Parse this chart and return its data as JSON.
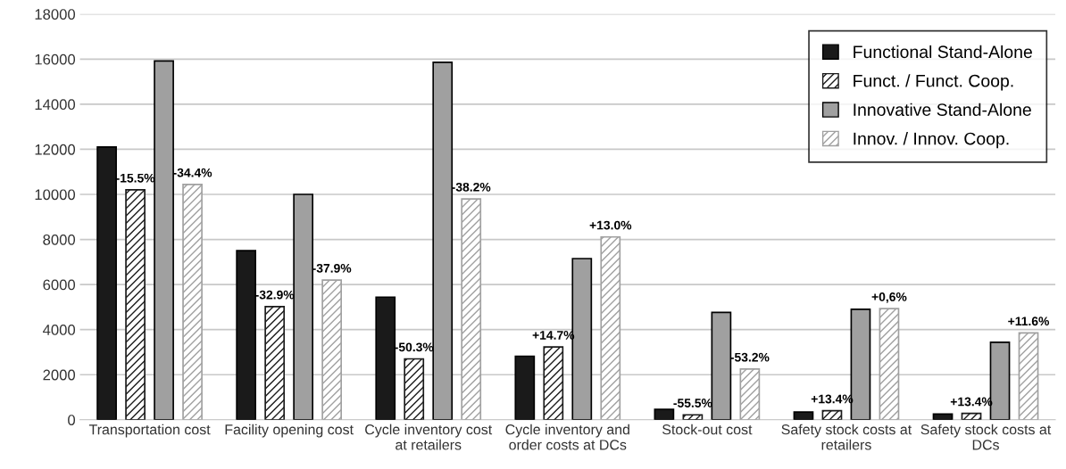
{
  "chart_data": {
    "type": "bar",
    "categories": [
      "Transportation cost",
      "Facility opening cost",
      "Cycle inventory cost\nat retailers",
      "Cycle inventory and\norder costs at DCs",
      "Stock-out cost",
      "Safety stock costs at\nretailers",
      "Safety stock costs at\nDCs"
    ],
    "series": [
      {
        "name": "Functional Stand-Alone",
        "color": "#1a1a1a",
        "values": [
          12100,
          7500,
          5440,
          2820,
          460,
          340,
          250
        ]
      },
      {
        "name": "Funct. / Funct. Coop.",
        "color": "#1a1a1a",
        "values": [
          10200,
          5020,
          2700,
          3230,
          220,
          400,
          280
        ]
      },
      {
        "name": "Innovative Stand-Alone",
        "color": "#a0a0a0",
        "values": [
          15920,
          10000,
          15860,
          7150,
          4760,
          4900,
          3440
        ]
      },
      {
        "name": "Innov. / Innov. Coop.",
        "color": "#a0a0a0",
        "values": [
          10440,
          6200,
          9800,
          8110,
          2250,
          4930,
          3850
        ]
      }
    ],
    "annotations": [
      "-15.5%",
      "-34.4%",
      "-32.9%",
      "-37.9%",
      "-50.3%",
      "-38.2%",
      "+14.7%",
      "+13.0%",
      "-55.5%",
      "-53.2%",
      "+13.4%",
      "+0,6%",
      "+13.4%",
      "+11.6%"
    ],
    "ylim": [
      0,
      18000
    ],
    "yticks": [
      0,
      2000,
      4000,
      6000,
      8000,
      10000,
      12000,
      14000,
      16000,
      18000
    ],
    "grid": "y",
    "legend": "top right"
  }
}
